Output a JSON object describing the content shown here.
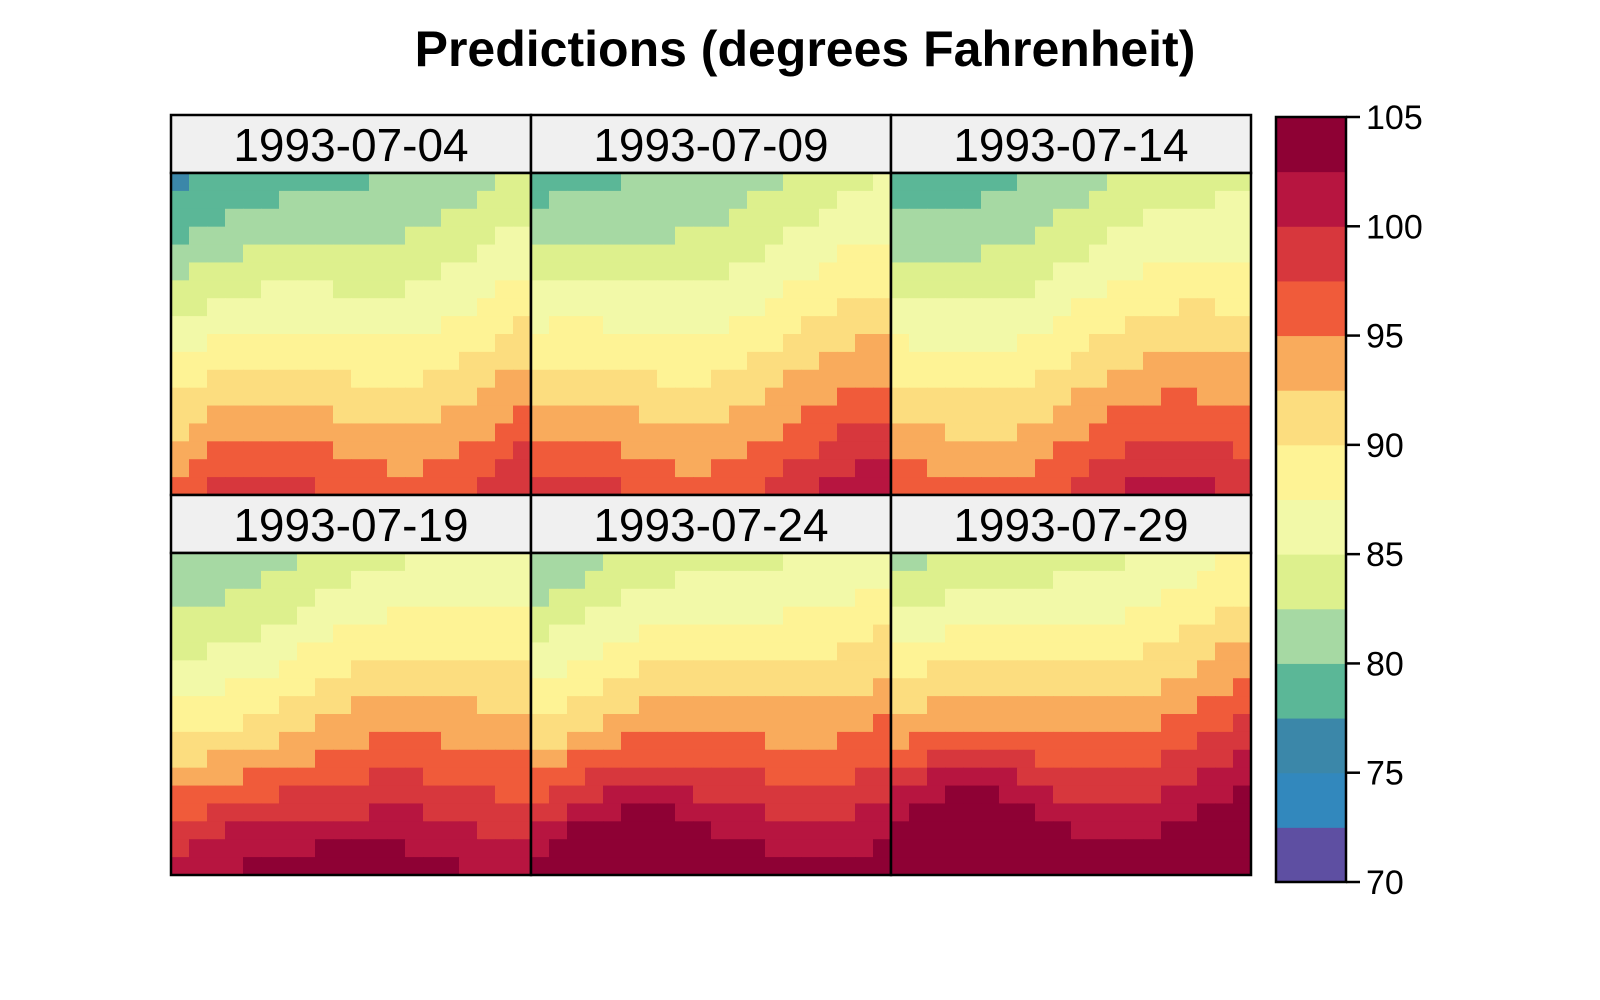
{
  "chart_data": {
    "type": "heatmap",
    "title": "Predictions (degrees Fahrenheit)",
    "panels": [
      {
        "label": "1993-07-04"
      },
      {
        "label": "1993-07-09"
      },
      {
        "label": "1993-07-14"
      },
      {
        "label": "1993-07-19"
      },
      {
        "label": "1993-07-24"
      },
      {
        "label": "1993-07-29"
      }
    ],
    "grid": {
      "rows": 18,
      "cols": 20
    },
    "colorbar": {
      "breaks": [
        70,
        72.5,
        75,
        77.5,
        80,
        82.5,
        85,
        87.5,
        90,
        92.5,
        95,
        97.5,
        100,
        102.5,
        105
      ],
      "colors": [
        "#5E4FA2",
        "#3288BD",
        "#3B87A9",
        "#5BB797",
        "#A6D9A3",
        "#DDF08D",
        "#F2F9A8",
        "#FEF395",
        "#FCDD7F",
        "#F9AB5C",
        "#F05B3A",
        "#D7373D",
        "#B71540",
        "#8E0134"
      ],
      "ticks": [
        105,
        100,
        95,
        90,
        85,
        80,
        75,
        70
      ],
      "range": [
        70,
        105
      ]
    }
  }
}
